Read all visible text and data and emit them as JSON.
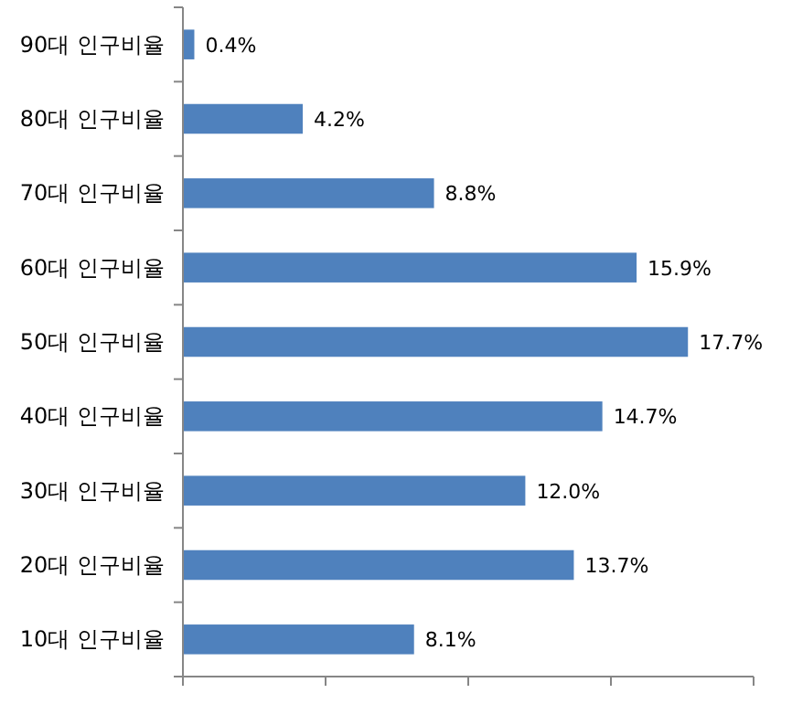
{
  "chart_data": {
    "type": "bar",
    "orientation": "horizontal",
    "categories": [
      "90대 인구비율",
      "80대 인구비율",
      "70대 인구비율",
      "60대 인구비율",
      "50대 인구비율",
      "40대 인구비율",
      "30대 인구비율",
      "20대 인구비율",
      "10대 인구비율"
    ],
    "values": [
      0.4,
      4.2,
      8.8,
      15.9,
      17.7,
      14.7,
      12.0,
      13.7,
      8.1
    ],
    "value_labels": [
      "0.4%",
      "4.2%",
      "8.8%",
      "15.9%",
      "17.7%",
      "14.7%",
      "12.0%",
      "13.7%",
      "8.1%"
    ],
    "color": "#4f81bd",
    "xlim": [
      0,
      20
    ],
    "xticks": [
      {
        "value": 0,
        "label": null
      },
      {
        "value": 5,
        "label": null
      },
      {
        "value": 10,
        "label": null
      },
      {
        "value": 15,
        "label": null
      },
      {
        "value": 20,
        "label": null
      }
    ],
    "tick_labels": "y"
  }
}
